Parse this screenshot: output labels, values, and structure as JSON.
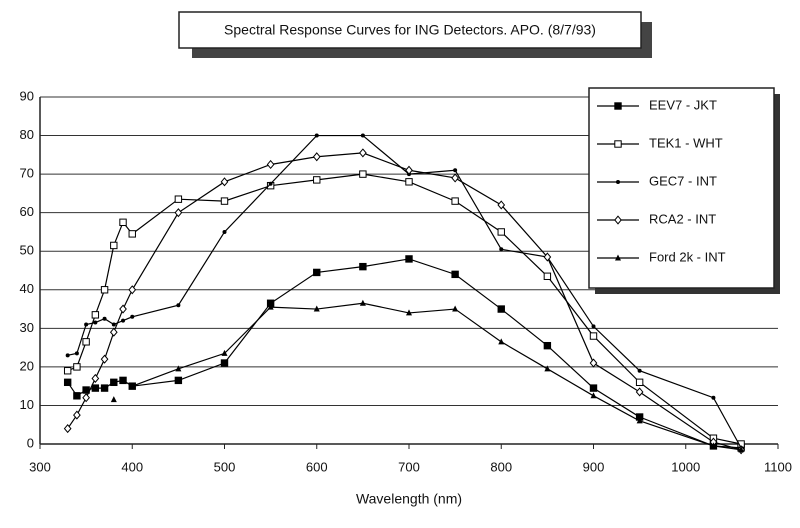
{
  "chart_data": {
    "type": "line",
    "title": "Spectral Response Curves for ING Detectors. APO. (8/7/93)",
    "x_label": "Wavelength (nm)",
    "x": [
      330,
      340,
      350,
      360,
      370,
      380,
      390,
      400,
      450,
      500,
      550,
      600,
      650,
      700,
      750,
      800,
      850,
      900,
      950,
      1030,
      1060
    ],
    "series": [
      {
        "name": "EEV7 - JKT",
        "color": "#000000",
        "marker": "square-filled",
        "values": [
          16,
          12.5,
          14,
          14.5,
          14.5,
          16,
          16.5,
          15,
          16.5,
          21,
          36.5,
          44.5,
          46,
          48,
          44,
          35,
          25.5,
          14.5,
          7,
          -0.5,
          -1
        ]
      },
      {
        "name": "TEK1 - WHT",
        "color": "#000000",
        "marker": "square-open",
        "values": [
          19,
          20,
          26.5,
          33.5,
          40,
          51.5,
          57.5,
          54.5,
          63.5,
          63,
          67,
          68.5,
          70,
          68,
          63,
          55,
          43.5,
          28,
          16,
          1.5,
          0
        ]
      },
      {
        "name": "GEC7 - INT",
        "color": "#000000",
        "marker": "dot",
        "values": [
          23,
          23.5,
          31,
          31.5,
          32.5,
          31,
          32,
          33,
          36,
          55,
          67.5,
          80,
          80,
          70,
          71,
          50.5,
          48.5,
          30.5,
          19,
          12,
          -1
        ]
      },
      {
        "name": "RCA2 - INT",
        "color": "#000000",
        "marker": "diamond-open",
        "values": [
          4,
          7.5,
          12,
          17,
          22,
          29,
          35,
          40,
          60,
          68,
          72.5,
          74.5,
          75.5,
          71,
          69,
          62,
          48.5,
          21,
          13.5,
          0.5,
          -1.5
        ]
      },
      {
        "name": "Ford 2k - INT",
        "color": "#000000",
        "marker": "triangle-filled",
        "values": [
          null,
          null,
          null,
          null,
          null,
          11.5,
          null,
          15,
          19.5,
          23.5,
          35.5,
          35,
          36.5,
          34,
          35,
          26.5,
          19.5,
          12.5,
          6,
          -0.5,
          -1.5
        ]
      }
    ],
    "xlim": [
      300,
      1100
    ],
    "xticks": [
      300,
      400,
      500,
      600,
      700,
      800,
      900,
      1000,
      1100
    ],
    "ylim": [
      0,
      90
    ],
    "yticks": [
      0,
      10,
      20,
      30,
      40,
      50,
      60,
      70,
      80,
      90
    ],
    "grid": true,
    "legend": "upper right"
  }
}
